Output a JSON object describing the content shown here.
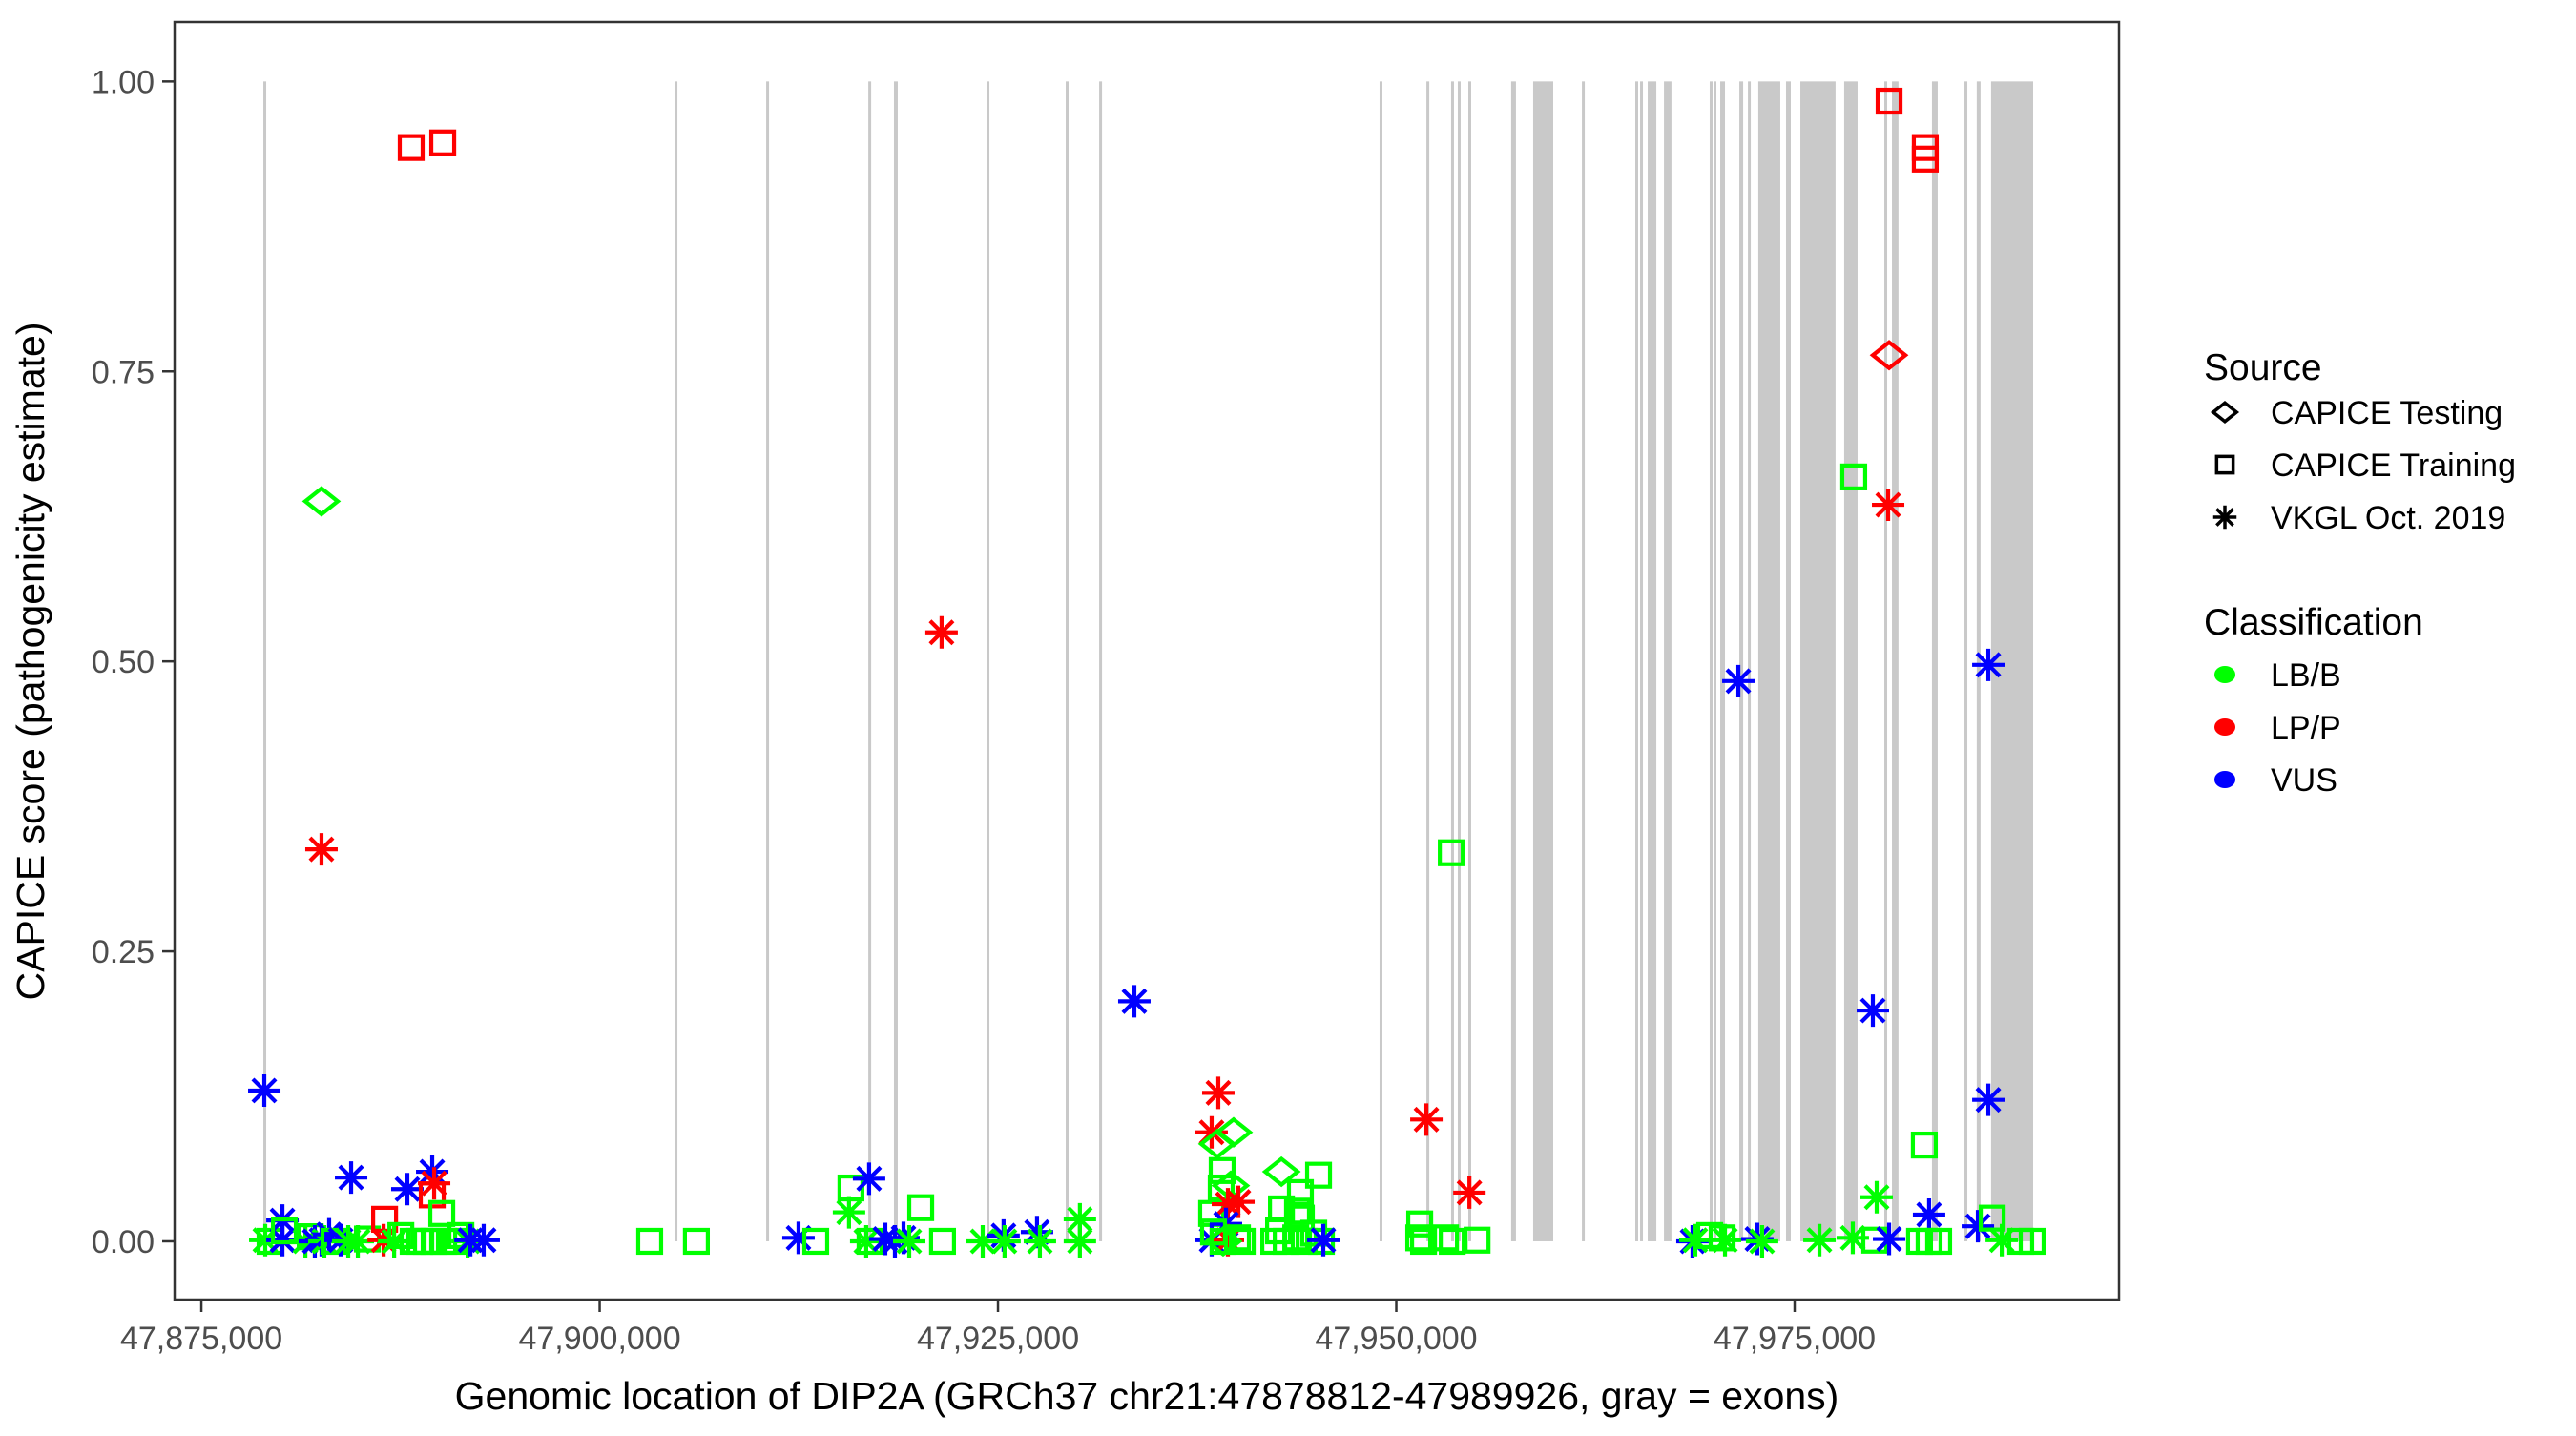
{
  "figure": {
    "x_axis_title": "Genomic location of DIP2A (GRCh37 chr21:47878812-47989926, gray = exons)",
    "y_axis_title": "CAPICE score (pathogenicity estimate)"
  },
  "legend": {
    "source": {
      "title": "Source",
      "items": [
        {
          "label": "CAPICE Testing",
          "shape": "diamond"
        },
        {
          "label": "CAPICE Training",
          "shape": "square"
        },
        {
          "label": "VKGL Oct. 2019",
          "shape": "asterisk"
        }
      ]
    },
    "classification": {
      "title": "Classification",
      "items": [
        {
          "label": "LB/B",
          "color": "#00FF00"
        },
        {
          "label": "LP/P",
          "color": "#FF0000"
        },
        {
          "label": "VUS",
          "color": "#0000FF"
        }
      ]
    }
  },
  "colors": {
    "exon": "#C9C9C9",
    "axis": "#333333",
    "tick_label": "#4D4D4D",
    "lbb": "#00FF00",
    "lpp": "#FF0000",
    "vus": "#0000FF"
  },
  "chart_data": {
    "type": "scatter",
    "title": "",
    "xlabel": "Genomic location of DIP2A (GRCh37 chr21:47878812-47989926, gray = exons)",
    "ylabel": "CAPICE score (pathogenicity estimate)",
    "xlim": [
      47873320,
      47995360
    ],
    "ylim": [
      -0.0502,
      1.0513
    ],
    "x_ticks": [
      {
        "value": 47875000,
        "label": "47,875,000"
      },
      {
        "value": 47900000,
        "label": "47,900,000"
      },
      {
        "value": 47925000,
        "label": "47,925,000"
      },
      {
        "value": 47950000,
        "label": "47,950,000"
      },
      {
        "value": 47975000,
        "label": "47,975,000"
      }
    ],
    "y_ticks": [
      {
        "value": 0.0,
        "label": "0.00"
      },
      {
        "value": 0.25,
        "label": "0.25"
      },
      {
        "value": 0.5,
        "label": "0.50"
      },
      {
        "value": 0.75,
        "label": "0.75"
      },
      {
        "value": 1.0,
        "label": "1.00"
      }
    ],
    "shape_key": {
      "d": "CAPICE Testing (open diamond)",
      "s": "CAPICE Training (open square)",
      "a": "VKGL Oct. 2019 (asterisk)"
    },
    "class_key": {
      "g": "LB/B",
      "r": "LP/P",
      "b": "VUS"
    },
    "exon_note": "gray vertical bands = exons, drawn from score 0 to score 1",
    "exons": [
      [
        47878890,
        47879070
      ],
      [
        47904700,
        47904880
      ],
      [
        47910450,
        47910630
      ],
      [
        47916860,
        47917040
      ],
      [
        47918470,
        47918710
      ],
      [
        47924280,
        47924460
      ],
      [
        47929250,
        47929430
      ],
      [
        47931350,
        47931530
      ],
      [
        47948950,
        47949130
      ],
      [
        47951890,
        47952070
      ],
      [
        47953440,
        47953620
      ],
      [
        47953860,
        47954040
      ],
      [
        47954520,
        47954700
      ],
      [
        47957210,
        47957510
      ],
      [
        47958590,
        47959850
      ],
      [
        47961650,
        47961830
      ],
      [
        47965000,
        47965120
      ],
      [
        47965300,
        47965420
      ],
      [
        47965780,
        47966320
      ],
      [
        47966800,
        47967270
      ],
      [
        47969670,
        47969790
      ],
      [
        47969910,
        47970030
      ],
      [
        47970330,
        47970630
      ],
      [
        47971530,
        47971770
      ],
      [
        47972070,
        47972180
      ],
      [
        47972720,
        47974100
      ],
      [
        47974460,
        47974760
      ],
      [
        47975360,
        47977570
      ],
      [
        47978110,
        47978950
      ],
      [
        47980630,
        47980810
      ],
      [
        47981110,
        47981520
      ],
      [
        47983620,
        47983980
      ],
      [
        47985660,
        47985840
      ],
      [
        47986430,
        47986670
      ],
      [
        47987330,
        47989970
      ]
    ],
    "points": [
      [
        47878950,
        0.13,
        "a",
        "b"
      ],
      [
        47879010,
        0.001,
        "a",
        "g"
      ],
      [
        47879310,
        0.0,
        "s",
        "g"
      ],
      [
        47880090,
        0.018,
        "a",
        "b"
      ],
      [
        47880090,
        0.001,
        "a",
        "b"
      ],
      [
        47880210,
        0.009,
        "s",
        "g"
      ],
      [
        47881530,
        0.0,
        "a",
        "g"
      ],
      [
        47881830,
        0.004,
        "s",
        "g"
      ],
      [
        47882120,
        0.0,
        "a",
        "b"
      ],
      [
        47882540,
        0.638,
        "d",
        "g"
      ],
      [
        47882540,
        0.338,
        "a",
        "r"
      ],
      [
        47882540,
        0.001,
        "a",
        "b"
      ],
      [
        47882720,
        0.0,
        "a",
        "g"
      ],
      [
        47883020,
        0.006,
        "a",
        "b"
      ],
      [
        47883320,
        0.0,
        "s",
        "g"
      ],
      [
        47883740,
        0.001,
        "a",
        "b"
      ],
      [
        47884220,
        0.0,
        "a",
        "g"
      ],
      [
        47884400,
        0.055,
        "a",
        "b"
      ],
      [
        47884820,
        0.0,
        "a",
        "g"
      ],
      [
        47885420,
        0.002,
        "s",
        "g"
      ],
      [
        47886440,
        0.001,
        "a",
        "r"
      ],
      [
        47886500,
        0.019,
        "s",
        "r"
      ],
      [
        47887100,
        0.0,
        "a",
        "g"
      ],
      [
        47887520,
        0.005,
        "s",
        "g"
      ],
      [
        47887930,
        0.045,
        "a",
        "b"
      ],
      [
        47888170,
        0.943,
        "s",
        "r"
      ],
      [
        47888290,
        0.0,
        "s",
        "g"
      ],
      [
        47888710,
        0.0,
        "s",
        "g"
      ],
      [
        47889130,
        0.0,
        "s",
        "g"
      ],
      [
        47889490,
        0.06,
        "a",
        "b"
      ],
      [
        47889610,
        0.05,
        "a",
        "r"
      ],
      [
        47889490,
        0.04,
        "s",
        "r"
      ],
      [
        47889610,
        0.0,
        "s",
        "g"
      ],
      [
        47890090,
        0.024,
        "s",
        "g"
      ],
      [
        47890150,
        0.947,
        "s",
        "r"
      ],
      [
        47890210,
        0.0,
        "s",
        "g"
      ],
      [
        47890810,
        0.0,
        "s",
        "g"
      ],
      [
        47891290,
        0.005,
        "s",
        "g"
      ],
      [
        47891710,
        0.0,
        "a",
        "g"
      ],
      [
        47891890,
        0.001,
        "a",
        "b"
      ],
      [
        47892720,
        0.001,
        "a",
        "b"
      ],
      [
        47903140,
        0.0,
        "s",
        "g"
      ],
      [
        47906070,
        0.0,
        "s",
        "g"
      ],
      [
        47912480,
        0.003,
        "a",
        "b"
      ],
      [
        47913560,
        0.0,
        "s",
        "g"
      ],
      [
        47915650,
        0.025,
        "a",
        "g"
      ],
      [
        47915770,
        0.046,
        "s",
        "g"
      ],
      [
        47916730,
        0.0,
        "a",
        "g"
      ],
      [
        47916910,
        0.054,
        "a",
        "b"
      ],
      [
        47916970,
        0.0,
        "s",
        "g"
      ],
      [
        47917930,
        0.002,
        "a",
        "b"
      ],
      [
        47918530,
        0.0,
        "a",
        "b"
      ],
      [
        47919070,
        0.003,
        "a",
        "b"
      ],
      [
        47919430,
        0.0,
        "a",
        "g"
      ],
      [
        47920150,
        0.029,
        "s",
        "g"
      ],
      [
        47921460,
        0.525,
        "a",
        "r"
      ],
      [
        47921520,
        0.0,
        "s",
        "g"
      ],
      [
        47924040,
        0.0,
        "a",
        "g"
      ],
      [
        47925350,
        0.005,
        "a",
        "b"
      ],
      [
        47925410,
        0.0,
        "a",
        "g"
      ],
      [
        47927450,
        0.008,
        "a",
        "b"
      ],
      [
        47927630,
        0.0,
        "a",
        "g"
      ],
      [
        47930140,
        0.019,
        "a",
        "g"
      ],
      [
        47930140,
        0.0,
        "a",
        "g"
      ],
      [
        47933560,
        0.207,
        "a",
        "b"
      ],
      [
        47938830,
        0.128,
        "a",
        "r"
      ],
      [
        47938410,
        0.094,
        "a",
        "r"
      ],
      [
        47939790,
        0.094,
        "d",
        "g"
      ],
      [
        47938770,
        0.084,
        "d",
        "g"
      ],
      [
        47939070,
        0.061,
        "s",
        "g"
      ],
      [
        47939010,
        0.046,
        "s",
        "g"
      ],
      [
        47939610,
        0.048,
        "d",
        "g"
      ],
      [
        47938410,
        0.024,
        "s",
        "g"
      ],
      [
        47939430,
        0.032,
        "a",
        "r"
      ],
      [
        47940090,
        0.034,
        "a",
        "r"
      ],
      [
        47939310,
        0.015,
        "a",
        "b"
      ],
      [
        47938410,
        0.001,
        "a",
        "b"
      ],
      [
        47939430,
        0.001,
        "a",
        "r"
      ],
      [
        47938530,
        0.008,
        "s",
        "g"
      ],
      [
        47939130,
        0.0,
        "s",
        "g"
      ],
      [
        47940030,
        0.003,
        "s",
        "g"
      ],
      [
        47940330,
        0.0,
        "s",
        "g"
      ],
      [
        47939130,
        0.0,
        "d",
        "g"
      ],
      [
        47942790,
        0.06,
        "d",
        "g"
      ],
      [
        47945120,
        0.057,
        "s",
        "g"
      ],
      [
        47943980,
        0.042,
        "s",
        "g"
      ],
      [
        47942790,
        0.028,
        "s",
        "g"
      ],
      [
        47943800,
        0.026,
        "s",
        "g"
      ],
      [
        47944040,
        0.02,
        "s",
        "g"
      ],
      [
        47942310,
        0.0,
        "s",
        "g"
      ],
      [
        47942610,
        0.009,
        "s",
        "g"
      ],
      [
        47943090,
        0.0,
        "s",
        "g"
      ],
      [
        47943690,
        0.003,
        "s",
        "g"
      ],
      [
        47944220,
        0.0,
        "s",
        "g"
      ],
      [
        47944820,
        0.007,
        "s",
        "g"
      ],
      [
        47945300,
        0.0,
        "s",
        "g"
      ],
      [
        47945420,
        0.001,
        "a",
        "b"
      ],
      [
        47951890,
        0.105,
        "a",
        "r"
      ],
      [
        47953450,
        0.335,
        "s",
        "g"
      ],
      [
        47954590,
        0.042,
        "a",
        "r"
      ],
      [
        47951470,
        0.015,
        "s",
        "g"
      ],
      [
        47951410,
        0.003,
        "s",
        "g"
      ],
      [
        47951710,
        0.0,
        "s",
        "g"
      ],
      [
        47953090,
        0.003,
        "s",
        "g"
      ],
      [
        47953510,
        0.0,
        "s",
        "g"
      ],
      [
        47955070,
        0.001,
        "s",
        "g"
      ],
      [
        47968590,
        0.0,
        "a",
        "b"
      ],
      [
        47968770,
        0.001,
        "a",
        "g"
      ],
      [
        47969670,
        0.005,
        "s",
        "g"
      ],
      [
        47970450,
        0.003,
        "s",
        "g"
      ],
      [
        47970630,
        0.001,
        "a",
        "g"
      ],
      [
        47971470,
        0.483,
        "a",
        "b"
      ],
      [
        47972660,
        0.002,
        "a",
        "b"
      ],
      [
        47972960,
        0.0,
        "a",
        "g"
      ],
      [
        47976560,
        0.001,
        "a",
        "g"
      ],
      [
        47978650,
        0.003,
        "a",
        "g"
      ],
      [
        47978710,
        0.659,
        "s",
        "g"
      ],
      [
        47979910,
        0.199,
        "a",
        "b"
      ],
      [
        47980030,
        0.001,
        "s",
        "g"
      ],
      [
        47980150,
        0.038,
        "a",
        "g"
      ],
      [
        47980870,
        0.635,
        "a",
        "r"
      ],
      [
        47980930,
        0.983,
        "s",
        "r"
      ],
      [
        47980930,
        0.764,
        "d",
        "r"
      ],
      [
        47980930,
        0.002,
        "a",
        "b"
      ],
      [
        47982840,
        0.0,
        "s",
        "g"
      ],
      [
        47983140,
        0.083,
        "s",
        "g"
      ],
      [
        47983200,
        0.943,
        "s",
        "r"
      ],
      [
        47983200,
        0.933,
        "s",
        "r"
      ],
      [
        47983440,
        0.023,
        "a",
        "b"
      ],
      [
        47983440,
        0.0,
        "s",
        "g"
      ],
      [
        47984040,
        0.0,
        "s",
        "g"
      ],
      [
        47986500,
        0.013,
        "a",
        "b"
      ],
      [
        47987160,
        0.497,
        "a",
        "b"
      ],
      [
        47987160,
        0.122,
        "a",
        "b"
      ],
      [
        47987400,
        0.02,
        "s",
        "g"
      ],
      [
        47988000,
        0.001,
        "a",
        "g"
      ],
      [
        47989190,
        0.0,
        "s",
        "g"
      ],
      [
        47989910,
        0.0,
        "s",
        "g"
      ]
    ]
  }
}
